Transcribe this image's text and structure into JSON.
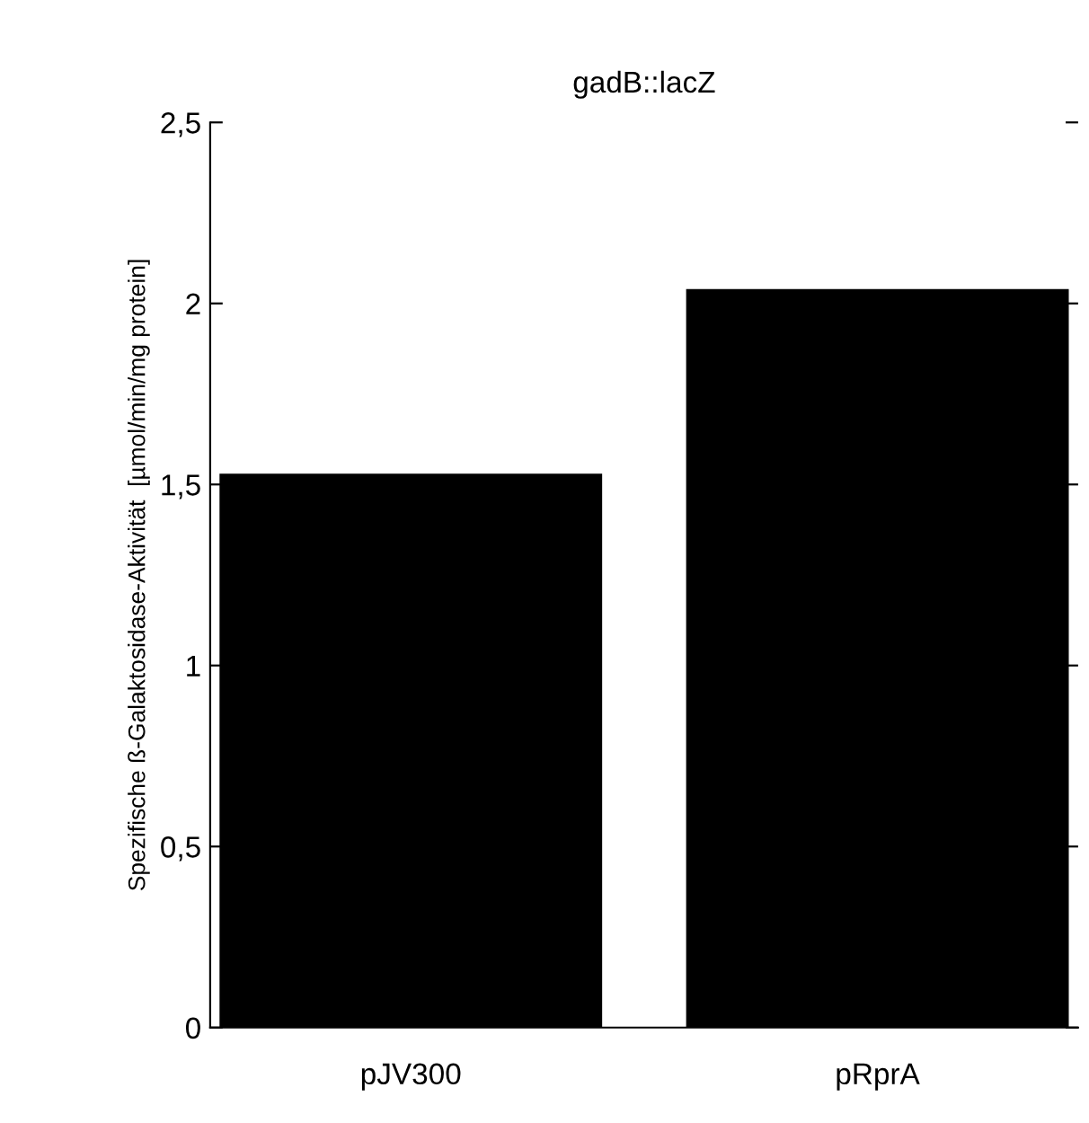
{
  "chart_data": {
    "type": "bar",
    "title": "gadB::lacZ",
    "ylabel": "Spezifische ß-Galaktosidase-Aktivität  [µmol/min/mg protein]",
    "categories": [
      "pJV300",
      "pRprA"
    ],
    "values": [
      1.53,
      2.04
    ],
    "color": "#000000",
    "ylim": [
      0,
      2.5
    ],
    "yticks": [
      {
        "value": 0,
        "label": "0"
      },
      {
        "value": 0.5,
        "label": "0,5"
      },
      {
        "value": 1,
        "label": "1"
      },
      {
        "value": 1.5,
        "label": "1,5"
      },
      {
        "value": 2,
        "label": "2"
      },
      {
        "value": 2.5,
        "label": "2,5"
      }
    ],
    "grid": false,
    "legend": false
  }
}
